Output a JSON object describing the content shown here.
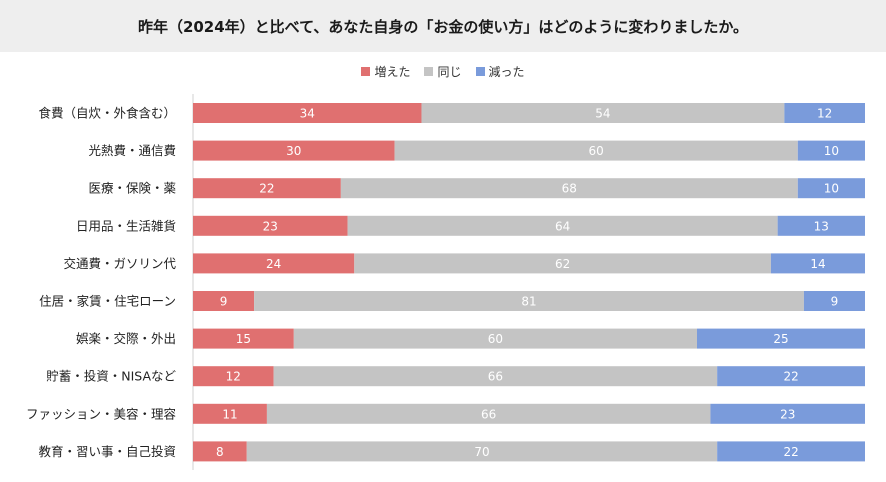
{
  "title": "昨年（2024年）と比べて、あなた自身の「お金の使い方」はどのように変わりましたか。",
  "legend": {
    "increased": "増えた",
    "same": "同じ",
    "decreased": "減った"
  },
  "colors": {
    "increased": "#e07070",
    "same": "#c4c4c4",
    "decreased": "#7a9bdb",
    "title_band": "#eeeeee"
  },
  "chart_data": {
    "type": "bar",
    "orientation": "horizontal",
    "stacked": true,
    "percent_stacked": true,
    "title": "昨年（2024年）と比べて、あなた自身の「お金の使い方」はどのように変わりましたか。",
    "categories": [
      "食費（自炊・外食含む）",
      "光熱費・通信費",
      "医療・保険・薬",
      "日用品・生活雑貨",
      "交通費・ガソリン代",
      "住居・家賃・住宅ローン",
      "娯楽・交際・外出",
      "貯蓄・投資・NISAなど",
      "ファッション・美容・理容",
      "教育・習い事・自己投資"
    ],
    "series": [
      {
        "name": "増えた",
        "values": [
          34,
          30,
          22,
          23,
          24,
          9,
          15,
          12,
          11,
          8
        ]
      },
      {
        "name": "同じ",
        "values": [
          54,
          60,
          68,
          64,
          62,
          81,
          60,
          66,
          66,
          70
        ]
      },
      {
        "name": "減った",
        "values": [
          12,
          10,
          10,
          13,
          14,
          9,
          25,
          22,
          23,
          22
        ]
      }
    ],
    "legend_position": "top-center",
    "grid": false,
    "data_labels": true
  }
}
